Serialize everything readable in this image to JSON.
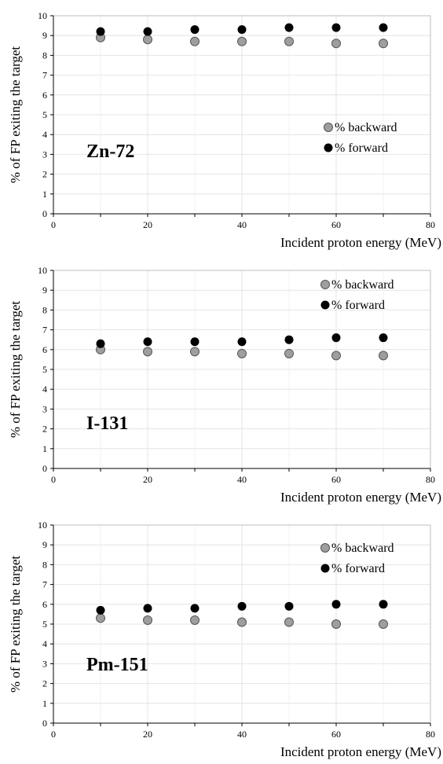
{
  "colors": {
    "backward": "#9e9e9e",
    "forward": "#000000",
    "grid": "#e4e4e4",
    "axis": "#000000"
  },
  "chart_data": [
    {
      "type": "scatter",
      "panel_label": "Zn-72",
      "xlabel": "Incident proton energy (MeV)",
      "ylabel": "% of FP exiting the target",
      "xlim": [
        0,
        80
      ],
      "ylim": [
        0,
        10
      ],
      "xticks": [
        "0",
        "20",
        "40",
        "60",
        "80"
      ],
      "yticks": [
        "0",
        "1",
        "2",
        "3",
        "4",
        "5",
        "6",
        "7",
        "8",
        "9",
        "10"
      ],
      "grid": true,
      "legend_position": "middle-right",
      "x": [
        10,
        20,
        30,
        40,
        50,
        60,
        70
      ],
      "series": [
        {
          "name": "% backward",
          "color": "#9e9e9e",
          "values": [
            8.9,
            8.8,
            8.7,
            8.7,
            8.7,
            8.6,
            8.6
          ]
        },
        {
          "name": "% forward",
          "color": "#000000",
          "values": [
            9.2,
            9.2,
            9.3,
            9.3,
            9.4,
            9.4,
            9.4
          ]
        }
      ]
    },
    {
      "type": "scatter",
      "panel_label": "I-131",
      "xlabel": "Incident proton energy (MeV)",
      "ylabel": "% of FP exiting the target",
      "xlim": [
        0,
        80
      ],
      "ylim": [
        0,
        10
      ],
      "xticks": [
        "0",
        "20",
        "40",
        "60",
        "80"
      ],
      "yticks": [
        "0",
        "1",
        "2",
        "3",
        "4",
        "5",
        "6",
        "7",
        "8",
        "9",
        "10"
      ],
      "grid": true,
      "legend_position": "top-right",
      "x": [
        10,
        20,
        30,
        40,
        50,
        60,
        70
      ],
      "series": [
        {
          "name": "% backward",
          "color": "#9e9e9e",
          "values": [
            6.0,
            5.9,
            5.9,
            5.8,
            5.8,
            5.7,
            5.7
          ]
        },
        {
          "name": "% forward",
          "color": "#000000",
          "values": [
            6.3,
            6.4,
            6.4,
            6.4,
            6.5,
            6.6,
            6.6
          ]
        }
      ]
    },
    {
      "type": "scatter",
      "panel_label": "Pm-151",
      "xlabel": "Incident proton energy (MeV)",
      "ylabel": "% of FP exiting the target",
      "xlim": [
        0,
        80
      ],
      "ylim": [
        0,
        10
      ],
      "xticks": [
        "0",
        "20",
        "40",
        "60",
        "80"
      ],
      "yticks": [
        "0",
        "1",
        "2",
        "3",
        "4",
        "5",
        "6",
        "7",
        "8",
        "9",
        "10"
      ],
      "grid": true,
      "legend_position": "top-right",
      "x": [
        10,
        20,
        30,
        40,
        50,
        60,
        70
      ],
      "series": [
        {
          "name": "% backward",
          "color": "#9e9e9e",
          "values": [
            5.3,
            5.2,
            5.2,
            5.1,
            5.1,
            5.0,
            5.0
          ]
        },
        {
          "name": "% forward",
          "color": "#000000",
          "values": [
            5.7,
            5.8,
            5.8,
            5.9,
            5.9,
            6.0,
            6.0
          ]
        }
      ]
    }
  ]
}
